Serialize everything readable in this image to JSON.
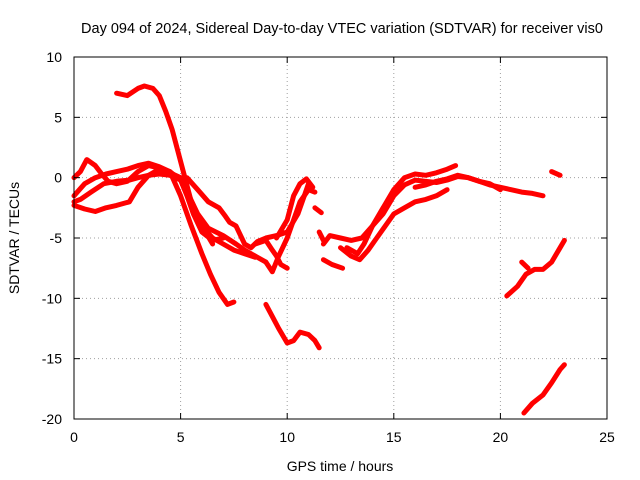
{
  "chart_data": {
    "type": "scatter",
    "title": "Day 094 of 2024, Sidereal Day-to-day VTEC variation (SDTVAR) for receiver vis0",
    "xlabel": "GPS time / hours",
    "ylabel": "SDTVAR / TECUs",
    "xlim": [
      0,
      25
    ],
    "ylim": [
      -20,
      10
    ],
    "xticks": [
      0,
      5,
      10,
      15,
      20,
      25
    ],
    "yticks": [
      -20,
      -15,
      -10,
      -5,
      0,
      5,
      10
    ],
    "grid": true,
    "marker": "plus",
    "color": "#ff0000",
    "series": [
      {
        "name": "s1",
        "points": [
          [
            0,
            -2.3
          ],
          [
            0.5,
            -2.6
          ],
          [
            1,
            -2.8
          ],
          [
            1.5,
            -2.5
          ],
          [
            2,
            -2.3
          ],
          [
            2.6,
            -2
          ],
          [
            3,
            -0.8
          ],
          [
            3.5,
            0.2
          ],
          [
            4,
            0.7
          ],
          [
            4.5,
            0.4
          ],
          [
            5,
            0
          ],
          [
            5.4,
            -1.5
          ],
          [
            5.8,
            -3
          ],
          [
            6.3,
            -4.2
          ],
          [
            7,
            -4.8
          ],
          [
            7.6,
            -5.5
          ],
          [
            8,
            -6
          ],
          [
            8.5,
            -6.5
          ],
          [
            9,
            -7
          ]
        ]
      },
      {
        "name": "s2",
        "points": [
          [
            0,
            -2
          ],
          [
            0.3,
            -1.8
          ],
          [
            0.8,
            -1.2
          ],
          [
            1.4,
            -0.5
          ],
          [
            2,
            -0.3
          ],
          [
            2.6,
            -0.2
          ],
          [
            3,
            0
          ],
          [
            3.5,
            0.2
          ],
          [
            4,
            0.3
          ],
          [
            4.5,
            0.2
          ],
          [
            5,
            -0.2
          ],
          [
            5.5,
            -2
          ],
          [
            6,
            -4
          ],
          [
            6.5,
            -5
          ],
          [
            7,
            -5.5
          ],
          [
            7.5,
            -6
          ],
          [
            8,
            -6.3
          ],
          [
            8.5,
            -6.6
          ]
        ]
      },
      {
        "name": "s3",
        "points": [
          [
            0,
            0
          ],
          [
            0.3,
            0.5
          ],
          [
            0.6,
            1.5
          ],
          [
            1,
            1
          ],
          [
            1.3,
            0.3
          ],
          [
            1.6,
            -0.3
          ],
          [
            2,
            -0.5
          ],
          [
            2.5,
            -0.3
          ],
          [
            3,
            0.5
          ],
          [
            3.5,
            1
          ],
          [
            4,
            0.8
          ],
          [
            4.5,
            0.5
          ],
          [
            5,
            -0.2
          ],
          [
            5.3,
            -1.5
          ],
          [
            5.6,
            -3
          ],
          [
            6,
            -4.5
          ],
          [
            6.5,
            -5.2
          ],
          [
            7,
            -5
          ]
        ]
      },
      {
        "name": "s4",
        "points": [
          [
            0,
            -1.5
          ],
          [
            0.5,
            -0.5
          ],
          [
            1,
            0
          ],
          [
            1.5,
            0.3
          ],
          [
            2,
            0.5
          ],
          [
            2.5,
            0.7
          ],
          [
            3,
            1
          ],
          [
            3.5,
            1.2
          ],
          [
            4,
            0.9
          ],
          [
            4.5,
            0.5
          ],
          [
            5,
            -1.5
          ],
          [
            5.5,
            -4
          ],
          [
            6,
            -6.3
          ],
          [
            6.4,
            -8
          ],
          [
            6.8,
            -9.5
          ],
          [
            7.2,
            -10.5
          ],
          [
            7.5,
            -10.3
          ]
        ]
      },
      {
        "name": "s5",
        "points": [
          [
            2,
            7
          ],
          [
            2.5,
            6.8
          ],
          [
            3,
            7.4
          ],
          [
            3.3,
            7.6
          ],
          [
            3.7,
            7.4
          ],
          [
            4,
            6.8
          ],
          [
            4.3,
            5.5
          ],
          [
            4.6,
            4
          ],
          [
            4.9,
            2
          ],
          [
            5.2,
            0
          ],
          [
            5.5,
            -2
          ],
          [
            6,
            -4
          ],
          [
            6.5,
            -5.5
          ]
        ]
      },
      {
        "name": "s6",
        "points": [
          [
            5.3,
            0
          ],
          [
            5.8,
            -1
          ],
          [
            6.3,
            -2
          ],
          [
            6.8,
            -2.5
          ],
          [
            7.1,
            -3.2
          ],
          [
            7.3,
            -3.7
          ],
          [
            7.6,
            -4
          ],
          [
            8,
            -5.5
          ],
          [
            8.3,
            -5.8
          ],
          [
            8.6,
            -5.3
          ],
          [
            9,
            -5
          ],
          [
            9.5,
            -4.8
          ],
          [
            10,
            -4.5
          ],
          [
            10.5,
            -3
          ],
          [
            10.8,
            -1.5
          ],
          [
            11,
            -0.5
          ]
        ]
      },
      {
        "name": "s7",
        "points": [
          [
            8.5,
            -5.5
          ],
          [
            9,
            -5.2
          ],
          [
            9.3,
            -6
          ],
          [
            9.5,
            -6.5
          ],
          [
            9.7,
            -7.2
          ],
          [
            10,
            -7.5
          ]
        ]
      },
      {
        "name": "s8",
        "points": [
          [
            9,
            -7
          ],
          [
            9.3,
            -7.8
          ],
          [
            9.6,
            -6.5
          ],
          [
            10,
            -5
          ],
          [
            10.3,
            -3.5
          ],
          [
            10.6,
            -2
          ],
          [
            11,
            -1
          ],
          [
            11.3,
            -1.2
          ]
        ]
      },
      {
        "name": "s9",
        "points": [
          [
            9.5,
            -5
          ],
          [
            10,
            -3.5
          ],
          [
            10.3,
            -1.5
          ],
          [
            10.6,
            -0.5
          ],
          [
            10.9,
            -0.1
          ],
          [
            11.2,
            -0.8
          ]
        ]
      },
      {
        "name": "s10",
        "points": [
          [
            11.3,
            -2.5
          ],
          [
            11.6,
            -2.9
          ]
        ]
      },
      {
        "name": "s11",
        "points": [
          [
            11.5,
            -4.5
          ],
          [
            11.7,
            -5.2
          ]
        ]
      },
      {
        "name": "s12",
        "points": [
          [
            11.7,
            -5.5
          ],
          [
            12,
            -4.8
          ],
          [
            12.5,
            -5
          ],
          [
            13,
            -5.2
          ],
          [
            13.5,
            -5
          ],
          [
            14,
            -4
          ],
          [
            14.5,
            -3
          ],
          [
            15,
            -1.5
          ],
          [
            15.5,
            -0.6
          ],
          [
            16,
            -0.2
          ],
          [
            16.5,
            -0.3
          ],
          [
            17,
            -0.4
          ],
          [
            17.5,
            -0.2
          ],
          [
            18,
            0.1
          ],
          [
            18.5,
            0
          ],
          [
            19,
            -0.3
          ],
          [
            19.5,
            -0.6
          ],
          [
            20,
            -0.8
          ],
          [
            20.5,
            -1
          ],
          [
            21,
            -1.2
          ],
          [
            21.5,
            -1.3
          ],
          [
            22,
            -1.5
          ]
        ]
      },
      {
        "name": "s13",
        "points": [
          [
            11.7,
            -6.8
          ],
          [
            12.1,
            -7.2
          ],
          [
            12.6,
            -7.5
          ]
        ]
      },
      {
        "name": "s14",
        "points": [
          [
            12.5,
            -5.8
          ],
          [
            13,
            -6.5
          ],
          [
            13.4,
            -6.8
          ],
          [
            13.8,
            -6
          ],
          [
            14.2,
            -5
          ],
          [
            14.6,
            -4
          ],
          [
            15,
            -3
          ],
          [
            15.5,
            -2.5
          ],
          [
            16,
            -2
          ],
          [
            16.5,
            -1.8
          ],
          [
            17,
            -1.5
          ],
          [
            17.5,
            -1
          ]
        ]
      },
      {
        "name": "s15",
        "points": [
          [
            12.8,
            -5.8
          ],
          [
            13.3,
            -6.3
          ],
          [
            13.6,
            -5.5
          ],
          [
            14,
            -4
          ],
          [
            14.5,
            -2.5
          ],
          [
            15,
            -1
          ],
          [
            15.5,
            0
          ],
          [
            16,
            0.3
          ],
          [
            16.5,
            0.2
          ],
          [
            17,
            0.4
          ],
          [
            17.5,
            0.7
          ],
          [
            17.9,
            1
          ]
        ]
      },
      {
        "name": "s16",
        "points": [
          [
            16,
            -0.8
          ],
          [
            16.5,
            -0.6
          ],
          [
            17,
            -0.3
          ],
          [
            17.5,
            -0.1
          ],
          [
            18,
            0.2
          ],
          [
            18.5,
            0
          ],
          [
            19,
            -0.3
          ],
          [
            19.5,
            -0.5
          ],
          [
            20,
            -1
          ]
        ]
      },
      {
        "name": "s17",
        "points": [
          [
            9,
            -10.5
          ],
          [
            9.3,
            -11.5
          ],
          [
            9.6,
            -12.5
          ],
          [
            10,
            -13.7
          ],
          [
            10.3,
            -13.5
          ],
          [
            10.6,
            -12.8
          ],
          [
            11,
            -13
          ],
          [
            11.3,
            -13.5
          ],
          [
            11.5,
            -14.1
          ]
        ]
      },
      {
        "name": "s18",
        "points": [
          [
            20.3,
            -9.8
          ],
          [
            20.8,
            -9
          ],
          [
            21.2,
            -8
          ],
          [
            21.6,
            -7.6
          ],
          [
            22,
            -7.6
          ],
          [
            22.4,
            -7
          ],
          [
            22.8,
            -5.8
          ],
          [
            23,
            -5.2
          ]
        ]
      },
      {
        "name": "s19",
        "points": [
          [
            21,
            -7
          ],
          [
            21.3,
            -7.5
          ]
        ]
      },
      {
        "name": "s20",
        "points": [
          [
            22.4,
            0.5
          ],
          [
            22.8,
            0.2
          ]
        ]
      },
      {
        "name": "s21",
        "points": [
          [
            21.1,
            -19.5
          ],
          [
            21.5,
            -18.7
          ],
          [
            22,
            -18
          ],
          [
            22.4,
            -17
          ],
          [
            22.8,
            -15.9
          ],
          [
            23,
            -15.5
          ]
        ]
      }
    ]
  }
}
